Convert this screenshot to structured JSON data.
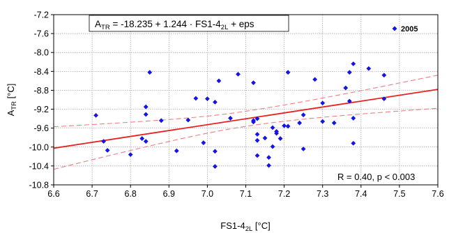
{
  "chart_data": {
    "type": "scatter",
    "xlim": [
      6.6,
      7.6
    ],
    "ylim": [
      -10.8,
      -7.2
    ],
    "x_ticks": [
      "6.6",
      "6.7",
      "6.8",
      "6.9",
      "7.0",
      "7.1",
      "7.2",
      "7.3",
      "7.4",
      "7.5",
      "7.6"
    ],
    "y_ticks": [
      "-7.2",
      "-7.6",
      "-8.0",
      "-8.4",
      "-8.8",
      "-9.2",
      "-9.6",
      "-10.0",
      "-10.4",
      "-10.8"
    ],
    "grid": true,
    "xlabel": {
      "main": "FS1-4",
      "sub": "2L",
      "unit": " [°C]"
    },
    "ylabel": {
      "main": "A",
      "sub": "TR",
      "unit": " [°C]"
    },
    "legend": {
      "position": "top-right",
      "label": "2005"
    },
    "equation": {
      "lhs_main": "A",
      "lhs_sub": "TR",
      "rhs": " = -18.235 + 1.244 · FS1-4",
      "rhs_sub": "2L",
      "tail": " + eps"
    },
    "stats_annotation": "R = 0.40, p < 0.003",
    "regression": {
      "intercept": -18.235,
      "slope": 1.244,
      "color": "#e8211f"
    },
    "confidence_band": {
      "color": "#ef7e7e",
      "upper_at_xlim": [
        -9.57,
        -8.48
      ],
      "lower_at_xlim": [
        -10.47,
        -9.18
      ]
    },
    "marker_color": "#1414e6",
    "series": [
      {
        "name": "2005",
        "points": [
          [
            6.71,
            -9.33
          ],
          [
            6.73,
            -9.88
          ],
          [
            6.74,
            -10.07
          ],
          [
            6.8,
            -10.16
          ],
          [
            6.83,
            -9.82
          ],
          [
            6.84,
            -9.88
          ],
          [
            6.84,
            -9.15
          ],
          [
            6.84,
            -9.31
          ],
          [
            6.85,
            -8.42
          ],
          [
            6.88,
            -9.44
          ],
          [
            6.92,
            -10.08
          ],
          [
            6.95,
            -9.43
          ],
          [
            6.97,
            -8.97
          ],
          [
            6.99,
            -9.91
          ],
          [
            7.0,
            -8.98
          ],
          [
            7.02,
            -9.05
          ],
          [
            7.02,
            -10.09
          ],
          [
            7.02,
            -10.41
          ],
          [
            7.03,
            -8.6
          ],
          [
            7.06,
            -9.39
          ],
          [
            7.08,
            -8.46
          ],
          [
            7.12,
            -9.47
          ],
          [
            7.12,
            -9.44
          ],
          [
            7.12,
            -8.64
          ],
          [
            7.13,
            -9.4
          ],
          [
            7.13,
            -9.73
          ],
          [
            7.13,
            -9.86
          ],
          [
            7.13,
            -10.18
          ],
          [
            7.15,
            -9.81
          ],
          [
            7.16,
            -10.39
          ],
          [
            7.16,
            -10.22
          ],
          [
            7.17,
            -9.59
          ],
          [
            7.17,
            -9.99
          ],
          [
            7.18,
            -9.71
          ],
          [
            7.18,
            -9.67
          ],
          [
            7.19,
            -9.82
          ],
          [
            7.2,
            -9.55
          ],
          [
            7.21,
            -9.56
          ],
          [
            7.21,
            -8.42
          ],
          [
            7.24,
            -9.49
          ],
          [
            7.25,
            -9.32
          ],
          [
            7.25,
            -10.04
          ],
          [
            7.28,
            -8.57
          ],
          [
            7.3,
            -9.07
          ],
          [
            7.3,
            -9.46
          ],
          [
            7.33,
            -9.49
          ],
          [
            7.36,
            -8.75
          ],
          [
            7.37,
            -8.42
          ],
          [
            7.37,
            -9.03
          ],
          [
            7.38,
            -9.92
          ],
          [
            7.38,
            -9.39
          ],
          [
            7.38,
            -8.24
          ],
          [
            7.42,
            -8.34
          ],
          [
            7.46,
            -8.48
          ],
          [
            7.46,
            -8.98
          ]
        ]
      }
    ]
  }
}
